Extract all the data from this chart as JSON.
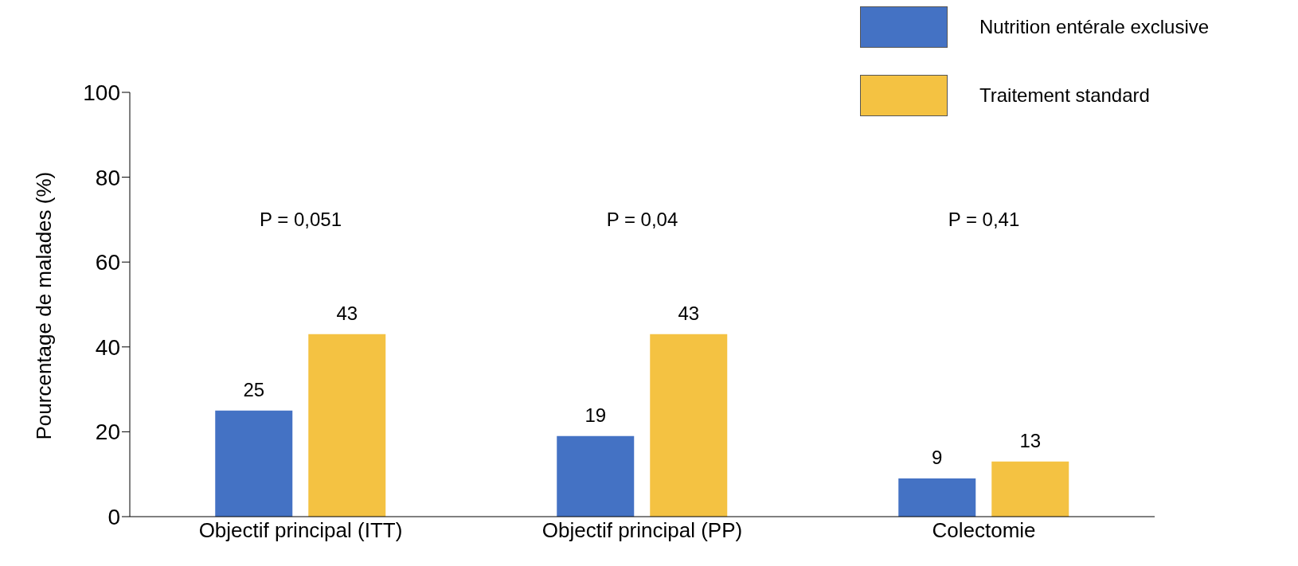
{
  "chart_data": {
    "type": "bar",
    "ylabel": "Pourcentage de malades (%)",
    "categories": [
      "Objectif principal (ITT)",
      "Objectif principal (PP)",
      "Colectomie"
    ],
    "series": [
      {
        "name": "Nutrition entérale exclusive",
        "color": "#4472c4",
        "values": [
          25,
          19,
          9
        ]
      },
      {
        "name": "Traitement standard",
        "color": "#f4c242",
        "values": [
          43,
          43,
          13
        ]
      }
    ],
    "ylim": [
      0,
      100
    ],
    "yticks": [
      0,
      20,
      40,
      60,
      80,
      100
    ],
    "data_labels": true,
    "legend": "top right",
    "annotations": [
      "P = 0,051",
      "P = 0,04",
      "P = 0,41"
    ]
  }
}
